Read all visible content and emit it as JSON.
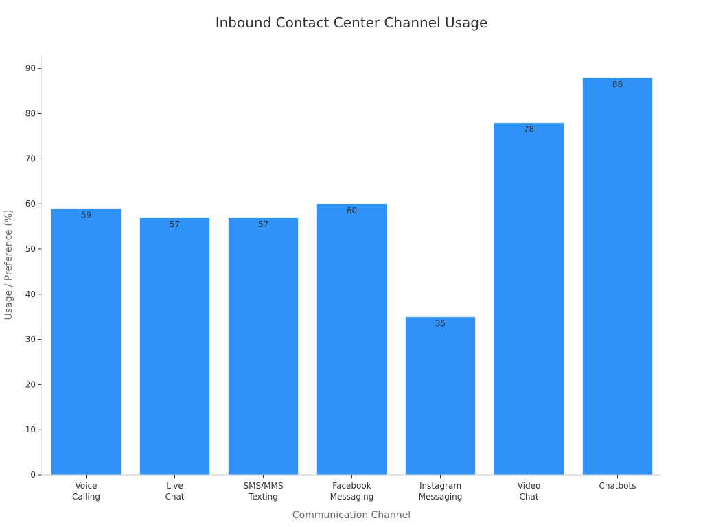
{
  "chart_data": {
    "type": "bar",
    "title": "Inbound Contact Center Channel Usage",
    "xlabel": "Communication Channel",
    "ylabel": "Usage / Preference (%)",
    "categories": [
      [
        "Voice",
        "Calling"
      ],
      [
        "Live",
        "Chat"
      ],
      [
        "SMS/MMS",
        "Texting"
      ],
      [
        "Facebook",
        "Messaging"
      ],
      [
        "Instagram",
        "Messaging"
      ],
      [
        "Video",
        "Chat"
      ],
      [
        "Chatbots"
      ]
    ],
    "values": [
      59,
      57,
      57,
      60,
      35,
      78,
      88
    ],
    "ylim": [
      0,
      93
    ],
    "yticks": [
      0,
      10,
      20,
      30,
      40,
      50,
      60,
      70,
      80,
      90
    ],
    "bar_color": "#2f92f8",
    "grid": false,
    "legend": "none"
  }
}
